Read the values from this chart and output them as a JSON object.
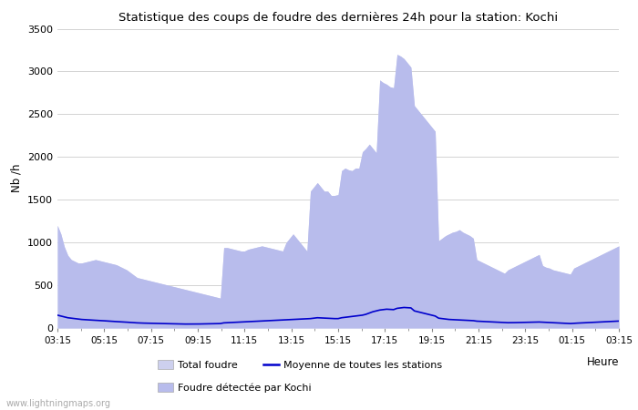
{
  "title": "Statistique des coups de foudre des dernières 24h pour la station: Kochi",
  "ylabel": "Nb /h",
  "xlabel": "Heure",
  "watermark": "www.lightningmaps.org",
  "ylim": [
    0,
    3500
  ],
  "yticks": [
    0,
    500,
    1000,
    1500,
    2000,
    2500,
    3000,
    3500
  ],
  "xtick_labels": [
    "03:15",
    "05:15",
    "07:15",
    "09:15",
    "11:15",
    "13:15",
    "15:15",
    "17:15",
    "19:15",
    "21:15",
    "23:15",
    "01:15",
    "03:15"
  ],
  "color_total": "#cdd0ee",
  "color_kochi": "#b8bcec",
  "color_moyenne": "#0000cc",
  "bg_color": "#ffffff",
  "total_foudre": [
    1200,
    1100,
    950,
    850,
    800,
    780,
    760,
    760,
    770,
    780,
    790,
    800,
    790,
    780,
    770,
    760,
    750,
    740,
    720,
    700,
    680,
    650,
    620,
    590,
    580,
    570,
    560,
    550,
    540,
    530,
    520,
    510,
    500,
    490,
    480,
    470,
    460,
    450,
    440,
    430,
    420,
    410,
    400,
    390,
    380,
    370,
    360,
    350,
    940,
    940,
    930,
    920,
    910,
    900,
    900,
    920,
    930,
    940,
    950,
    960,
    950,
    940,
    930,
    920,
    910,
    900,
    1000,
    1050,
    1100,
    1050,
    1000,
    950,
    900,
    1600,
    1650,
    1700,
    1650,
    1600,
    1600,
    1550,
    1550,
    1560,
    1840,
    1870,
    1850,
    1840,
    1870,
    1870,
    2060,
    2100,
    2150,
    2100,
    2050,
    2900,
    2870,
    2850,
    2820,
    2810,
    3200,
    3180,
    3150,
    3100,
    3050,
    2600,
    2550,
    2500,
    2450,
    2400,
    2350,
    2300,
    1020,
    1050,
    1080,
    1100,
    1120,
    1130,
    1150,
    1120,
    1100,
    1080,
    1050,
    800,
    780,
    760,
    740,
    720,
    700,
    680,
    660,
    640,
    680,
    700,
    720,
    740,
    760,
    780,
    800,
    820,
    840,
    860,
    730,
    710,
    700,
    680,
    670,
    660,
    650,
    640,
    630,
    700,
    720,
    740,
    760,
    780,
    800,
    820,
    840,
    860,
    880,
    900,
    920,
    940,
    960
  ],
  "kochi_foudre": [
    1200,
    1100,
    950,
    850,
    800,
    780,
    760,
    760,
    770,
    780,
    790,
    800,
    790,
    780,
    770,
    760,
    750,
    740,
    720,
    700,
    680,
    650,
    620,
    590,
    580,
    570,
    560,
    550,
    540,
    530,
    520,
    510,
    500,
    490,
    480,
    470,
    460,
    450,
    440,
    430,
    420,
    410,
    400,
    390,
    380,
    370,
    360,
    350,
    940,
    940,
    930,
    920,
    910,
    900,
    900,
    920,
    930,
    940,
    950,
    960,
    950,
    940,
    930,
    920,
    910,
    900,
    1000,
    1050,
    1100,
    1050,
    1000,
    950,
    900,
    1600,
    1650,
    1700,
    1650,
    1600,
    1600,
    1550,
    1550,
    1560,
    1840,
    1870,
    1850,
    1840,
    1870,
    1870,
    2060,
    2100,
    2150,
    2100,
    2050,
    2900,
    2870,
    2850,
    2820,
    2810,
    3200,
    3180,
    3150,
    3100,
    3050,
    2600,
    2550,
    2500,
    2450,
    2400,
    2350,
    2300,
    1020,
    1050,
    1080,
    1100,
    1120,
    1130,
    1150,
    1120,
    1100,
    1080,
    1050,
    800,
    780,
    760,
    740,
    720,
    700,
    680,
    660,
    640,
    680,
    700,
    720,
    740,
    760,
    780,
    800,
    820,
    840,
    860,
    730,
    710,
    700,
    680,
    670,
    660,
    650,
    640,
    630,
    700,
    720,
    740,
    760,
    780,
    800,
    820,
    840,
    860,
    880,
    900,
    920,
    940,
    960
  ],
  "moyenne": [
    150,
    140,
    130,
    120,
    115,
    110,
    105,
    100,
    98,
    95,
    92,
    90,
    88,
    85,
    83,
    80,
    78,
    75,
    73,
    70,
    68,
    65,
    63,
    60,
    58,
    57,
    56,
    55,
    54,
    53,
    52,
    51,
    50,
    49,
    48,
    47,
    46,
    46,
    46,
    46,
    47,
    47,
    48,
    48,
    49,
    50,
    51,
    52,
    60,
    62,
    64,
    66,
    68,
    70,
    72,
    74,
    76,
    78,
    80,
    82,
    84,
    86,
    88,
    90,
    92,
    94,
    96,
    98,
    100,
    102,
    104,
    106,
    108,
    110,
    115,
    120,
    118,
    116,
    114,
    112,
    110,
    110,
    120,
    125,
    130,
    135,
    140,
    145,
    150,
    160,
    175,
    190,
    200,
    210,
    215,
    220,
    218,
    215,
    230,
    235,
    240,
    238,
    235,
    200,
    190,
    180,
    170,
    160,
    150,
    140,
    115,
    110,
    105,
    100,
    98,
    96,
    94,
    92,
    90,
    88,
    86,
    80,
    78,
    76,
    74,
    72,
    70,
    68,
    66,
    64,
    62,
    62,
    63,
    64,
    65,
    66,
    67,
    68,
    69,
    70,
    68,
    66,
    64,
    62,
    60,
    58,
    56,
    54,
    52,
    55,
    57,
    59,
    61,
    63,
    65,
    67,
    69,
    71,
    73,
    75,
    77,
    79,
    81
  ]
}
